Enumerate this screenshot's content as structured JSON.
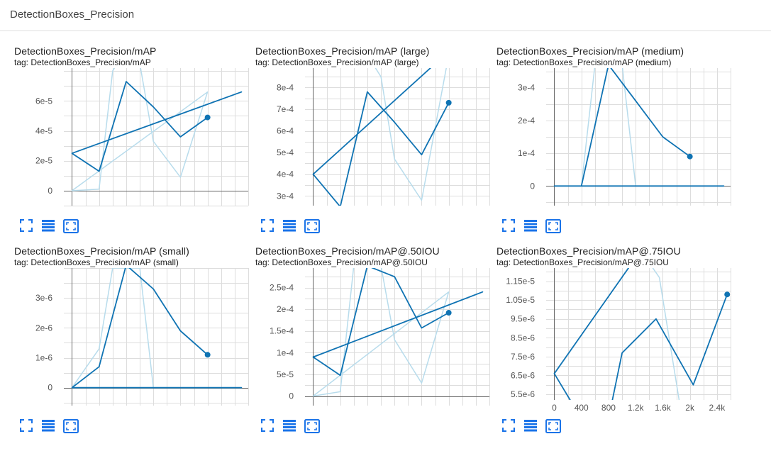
{
  "section": {
    "title": "DetectionBoxes_Precision"
  },
  "colors": {
    "line": "#0f73b3",
    "smoothed_light": "#b8dcec",
    "grid": "#dddddd",
    "axis": "#666666",
    "tick_text": "#555555",
    "icon": "#1a73e8"
  },
  "toolbar_icons": [
    "fullscreen-icon",
    "data-table-icon",
    "fit-domain-icon"
  ],
  "chart_data": [
    {
      "type": "line",
      "title": "DetectionBoxes_Precision/mAP",
      "tag": "tag: DetectionBoxes_Precision/mAP",
      "xlim": [
        -120,
        2600
      ],
      "ylim": [
        -1e-05,
        8.2e-05
      ],
      "yticks": [
        0,
        2e-05,
        4e-05,
        6e-05
      ],
      "ytick_labels": [
        "0",
        "2e-5",
        "4e-5",
        "6e-5"
      ],
      "series": [
        {
          "values": [
            [
              0,
              2.5e-05
            ],
            [
              2500,
              6.6e-05
            ],
            [
              0,
              2.5e-05
            ],
            [
              400,
              1.3e-05
            ],
            [
              800,
              7.3e-05
            ],
            [
              1200,
              5.6e-05
            ],
            [
              1600,
              3.6e-05
            ],
            [
              2000,
              4.9e-05
            ]
          ]
        },
        {
          "smoothed": true,
          "values": [
            [
              0,
              0
            ],
            [
              400,
              1e-06
            ],
            [
              600,
              8e-05
            ],
            [
              800,
              9.5e-05
            ],
            [
              1000,
              8.5e-05
            ],
            [
              1200,
              3.3e-05
            ],
            [
              1600,
              9e-06
            ],
            [
              2000,
              6.6e-05
            ],
            [
              0,
              0
            ],
            [
              2000,
              6.6e-05
            ]
          ]
        }
      ]
    },
    {
      "type": "line",
      "title": "DetectionBoxes_Precision/mAP (large)",
      "tag": "tag: DetectionBoxes_Precision/mAP (large)",
      "xlim": [
        -120,
        2600
      ],
      "ylim": [
        0.000255,
        0.00089
      ],
      "yticks": [
        0.0003,
        0.0004,
        0.0005,
        0.0006,
        0.0007,
        0.0008
      ],
      "ytick_labels": [
        "3e-4",
        "4e-4",
        "5e-4",
        "6e-4",
        "7e-4",
        "8e-4"
      ],
      "series": [
        {
          "values": [
            [
              0,
              0.0004
            ],
            [
              1800,
              0.00091
            ],
            [
              0,
              0.0004
            ],
            [
              400,
              0.00025
            ],
            [
              800,
              0.00078
            ],
            [
              1200,
              0.00064
            ],
            [
              1600,
              0.00049
            ],
            [
              2000,
              0.00073
            ]
          ]
        },
        {
          "smoothed": true,
          "values": [
            [
              800,
              0.00095
            ],
            [
              1000,
              0.00085
            ],
            [
              1200,
              0.00047
            ],
            [
              1600,
              0.00028
            ],
            [
              2000,
              0.00095
            ]
          ]
        }
      ]
    },
    {
      "type": "line",
      "title": "DetectionBoxes_Precision/mAP (medium)",
      "tag": "tag: DetectionBoxes_Precision/mAP (medium)",
      "xlim": [
        -120,
        2600
      ],
      "ylim": [
        -6e-05,
        0.00036
      ],
      "yticks": [
        0,
        0.0001,
        0.0002,
        0.0003
      ],
      "ytick_labels": [
        "0",
        "1e-4",
        "2e-4",
        "3e-4"
      ],
      "series": [
        {
          "values": [
            [
              0,
              0
            ],
            [
              2500,
              0
            ],
            [
              0,
              0
            ],
            [
              400,
              0
            ],
            [
              800,
              0.00037
            ],
            [
              1200,
              0.00026
            ],
            [
              1600,
              0.00015
            ],
            [
              2000,
              9e-05
            ]
          ]
        },
        {
          "smoothed": true,
          "values": [
            [
              400,
              0
            ],
            [
              600,
              0.00037
            ],
            [
              1000,
              0.00037
            ],
            [
              1200,
              0
            ]
          ]
        }
      ]
    },
    {
      "type": "line",
      "title": "DetectionBoxes_Precision/mAP (small)",
      "tag": "tag: DetectionBoxes_Precision/mAP (small)",
      "xlim": [
        -120,
        2600
      ],
      "ylim": [
        -6e-07,
        4e-06
      ],
      "yticks": [
        0,
        1e-06,
        2e-06,
        3e-06
      ],
      "ytick_labels": [
        "0",
        "1e-6",
        "2e-6",
        "3e-6"
      ],
      "series": [
        {
          "values": [
            [
              0,
              0
            ],
            [
              2500,
              0
            ],
            [
              0,
              0
            ],
            [
              400,
              7e-07
            ],
            [
              800,
              4.1e-06
            ],
            [
              1200,
              3.3e-06
            ],
            [
              1600,
              1.9e-06
            ],
            [
              2000,
              1.1e-06
            ]
          ]
        },
        {
          "smoothed": true,
          "values": [
            [
              0,
              0
            ],
            [
              400,
              1.3e-06
            ],
            [
              600,
              4e-06
            ],
            [
              1000,
              4e-06
            ],
            [
              1200,
              0
            ]
          ]
        }
      ]
    },
    {
      "type": "line",
      "title": "DetectionBoxes_Precision/mAP@.50IOU",
      "tag": "tag: DetectionBoxes_Precision/mAP@.50IOU",
      "xlim": [
        -120,
        2600
      ],
      "ylim": [
        -2.2e-05,
        0.000295
      ],
      "yticks": [
        0,
        5e-05,
        0.0001,
        0.00015,
        0.0002,
        0.00025
      ],
      "ytick_labels": [
        "0",
        "5e-5",
        "1e-4",
        "1.5e-4",
        "2e-4",
        "2.5e-4"
      ],
      "series": [
        {
          "values": [
            [
              0,
              9e-05
            ],
            [
              2500,
              0.00024
            ],
            [
              0,
              9e-05
            ],
            [
              400,
              4.8e-05
            ],
            [
              800,
              0.0003
            ],
            [
              1200,
              0.000275
            ],
            [
              1600,
              0.000157
            ],
            [
              2000,
              0.000192
            ]
          ]
        },
        {
          "smoothed": true,
          "values": [
            [
              0,
              0
            ],
            [
              400,
              1e-05
            ],
            [
              600,
              0.0003
            ],
            [
              1000,
              0.0003
            ],
            [
              1200,
              0.00013
            ],
            [
              1600,
              3e-05
            ],
            [
              2000,
              0.00024
            ],
            [
              0,
              0
            ],
            [
              2000,
              0.00024
            ]
          ]
        }
      ]
    },
    {
      "type": "line",
      "title": "DetectionBoxes_Precision/mAP@.75IOU",
      "tag": "tag: DetectionBoxes_Precision/mAP@.75IOU",
      "xlim": [
        -120,
        2600
      ],
      "ylim": [
        5.2e-06,
        1.22e-05
      ],
      "yticks": [
        5.5e-06,
        6.5e-06,
        7.5e-06,
        8.5e-06,
        9.5e-06,
        1.05e-05,
        1.15e-05
      ],
      "ytick_labels": [
        "5.5e-6",
        "6.5e-6",
        "7.5e-6",
        "8.5e-6",
        "9.5e-6",
        "1.05e-5",
        "1.15e-5"
      ],
      "xticks": [
        0,
        400,
        800,
        1200,
        1600,
        2000,
        2400
      ],
      "xtick_labels": [
        "0",
        "400",
        "800",
        "1.2k",
        "1.6k",
        "2k",
        "2.4k"
      ],
      "series": [
        {
          "values": [
            [
              0,
              6.6e-06
            ],
            [
              1250,
              1.3e-05
            ],
            [
              0,
              6.6e-06
            ],
            [
              400,
              4.2e-06
            ],
            [
              800,
              4.2e-06
            ],
            [
              1000,
              7.7e-06
            ],
            [
              1500,
              9.5e-06
            ],
            [
              2050,
              6e-06
            ],
            [
              2550,
              1.08e-05
            ]
          ]
        },
        {
          "smoothed": true,
          "values": [
            [
              1300,
              1.3e-05
            ],
            [
              1550,
              1.17e-05
            ],
            [
              1850,
              5e-06
            ]
          ]
        }
      ]
    }
  ]
}
